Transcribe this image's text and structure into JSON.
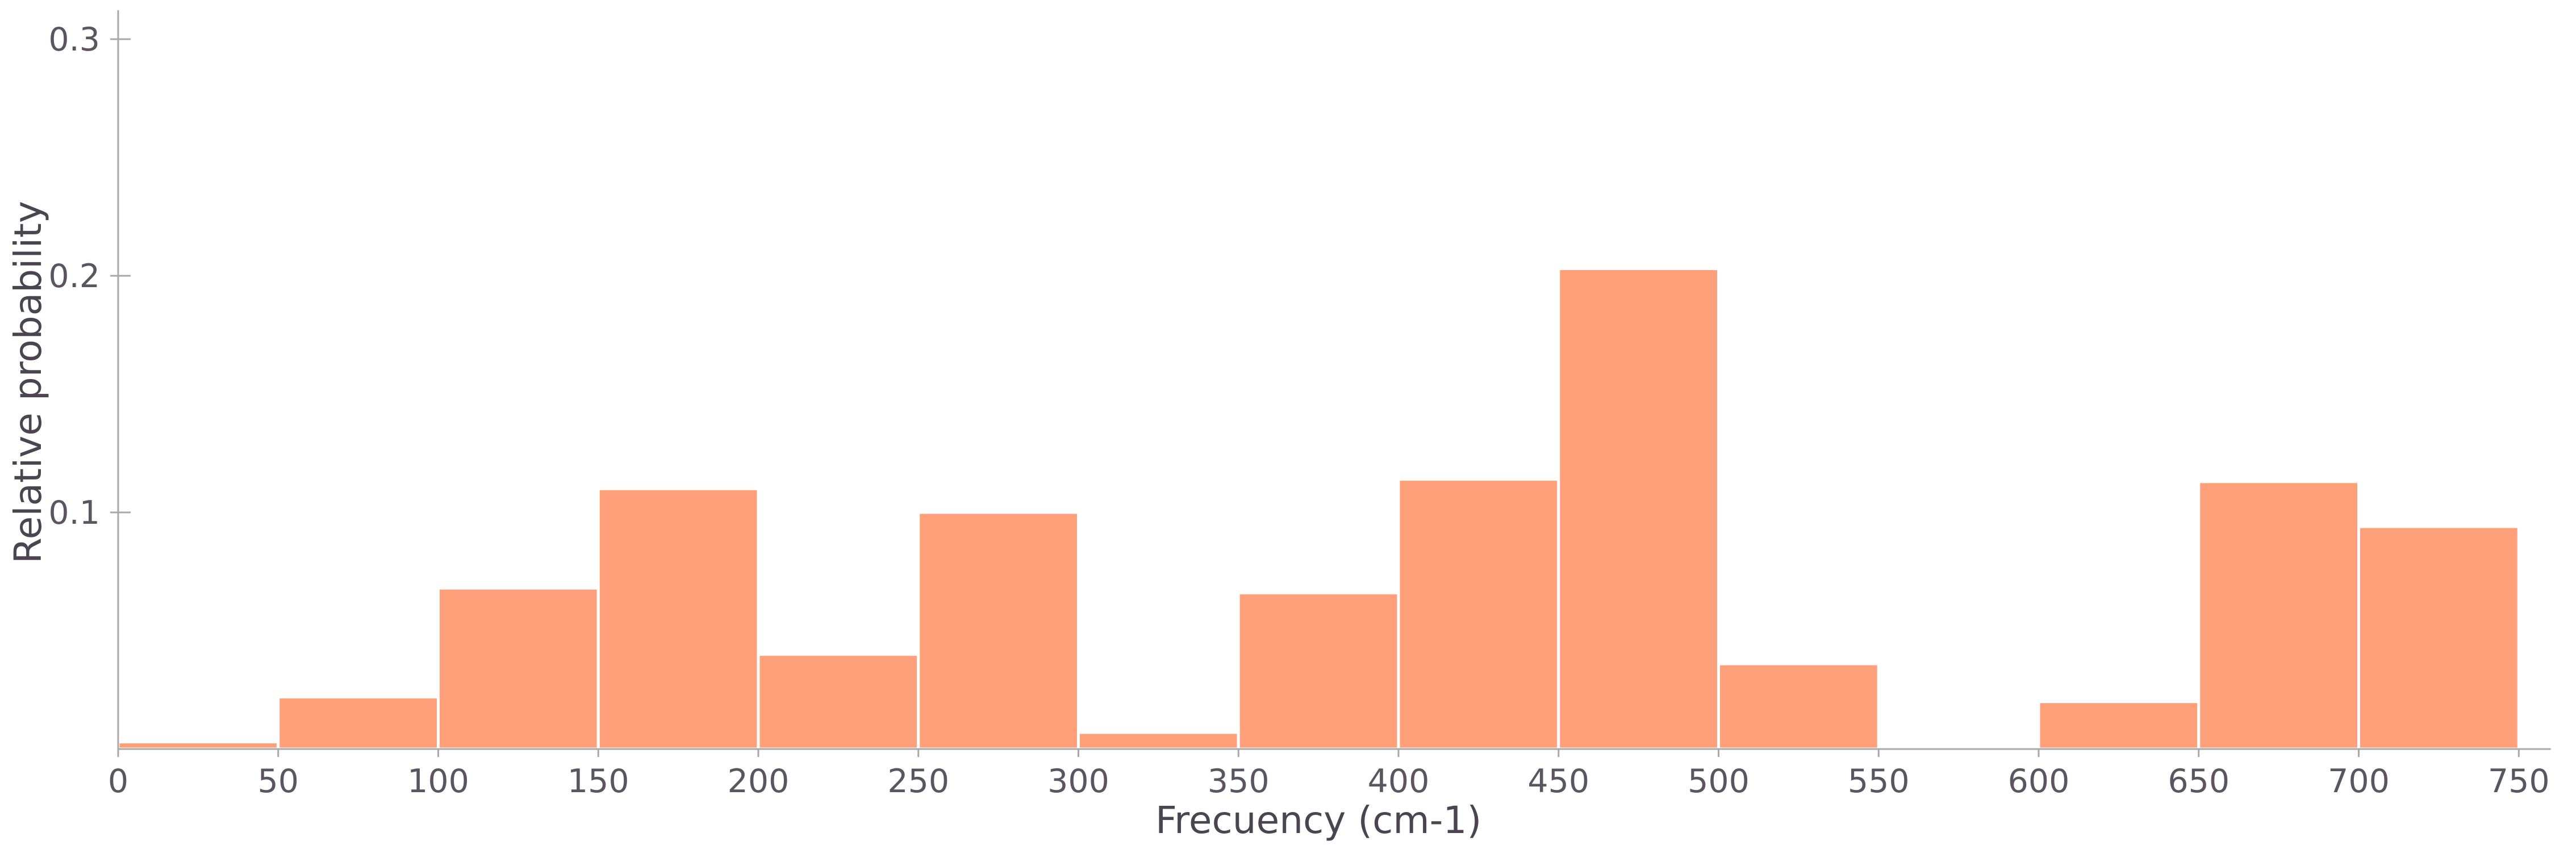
{
  "chart_data": {
    "type": "bar",
    "xlabel": "Frecuency (cm-1)",
    "ylabel": "Relative probability",
    "xlim": [
      0,
      760
    ],
    "ylim": [
      0,
      0.31
    ],
    "x_ticks": [
      0,
      50,
      100,
      150,
      200,
      250,
      300,
      350,
      400,
      450,
      500,
      550,
      600,
      650,
      700,
      750
    ],
    "x_tick_labels": [
      "0",
      "50",
      "100",
      "150",
      "200",
      "250",
      "300",
      "350",
      "400",
      "450",
      "500",
      "550",
      "600",
      "650",
      "700",
      "750"
    ],
    "y_ticks": [
      0.1,
      0.2,
      0.3
    ],
    "y_tick_labels": [
      "0.1",
      "0.2",
      "0.3"
    ],
    "bar_color": "#ffa07a",
    "grid": false,
    "bins": [
      {
        "start": 0,
        "end": 50,
        "value": 0.003
      },
      {
        "start": 50,
        "end": 100,
        "value": 0.022
      },
      {
        "start": 100,
        "end": 150,
        "value": 0.068
      },
      {
        "start": 150,
        "end": 200,
        "value": 0.11
      },
      {
        "start": 200,
        "end": 250,
        "value": 0.04
      },
      {
        "start": 250,
        "end": 300,
        "value": 0.1
      },
      {
        "start": 300,
        "end": 350,
        "value": 0.007
      },
      {
        "start": 350,
        "end": 400,
        "value": 0.066
      },
      {
        "start": 400,
        "end": 450,
        "value": 0.114
      },
      {
        "start": 450,
        "end": 500,
        "value": 0.203
      },
      {
        "start": 500,
        "end": 550,
        "value": 0.036
      },
      {
        "start": 550,
        "end": 600,
        "value": 0
      },
      {
        "start": 600,
        "end": 650,
        "value": 0.02
      },
      {
        "start": 650,
        "end": 700,
        "value": 0.113
      },
      {
        "start": 700,
        "end": 750,
        "value": 0.094
      }
    ]
  }
}
